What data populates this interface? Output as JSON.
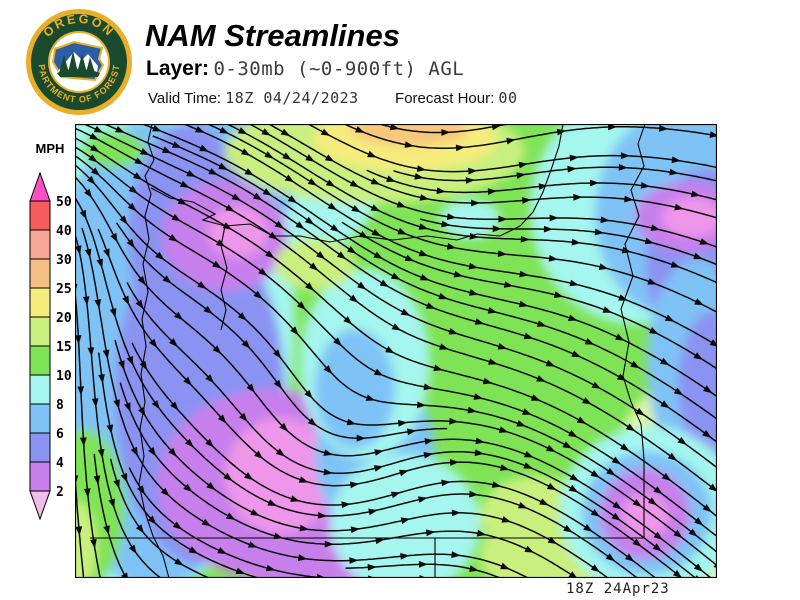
{
  "header": {
    "title": "NAM Streamlines",
    "layer_label": "Layer:",
    "layer_value": "0-30mb (~0-900ft) AGL",
    "valid_time_label": "Valid Time:",
    "valid_time_value": "18Z 04/24/2023",
    "forecast_hour_label": "Forecast Hour:",
    "forecast_hour_value": "00"
  },
  "logo": {
    "ring_text_top": "OREGON",
    "ring_text_bottom": "DEPARTMENT OF FORESTRY",
    "colors": {
      "gold": "#E9AF28",
      "dark_green": "#1A4A2E",
      "sky_blue": "#2B5EA7",
      "white": "#FFFFFF"
    }
  },
  "legend": {
    "unit": "MPH",
    "boundary_labels": [
      "50",
      "40",
      "30",
      "25",
      "20",
      "15",
      "10",
      "8",
      "6",
      "4",
      "2"
    ],
    "band_colors": [
      "#F75C5C",
      "#F8A795",
      "#F4C083",
      "#F6EC7C",
      "#C9F07F",
      "#7FE356",
      "#A4F6EE",
      "#7FC3F6",
      "#8B93F2",
      "#C77FEC"
    ],
    "arrow_top_color": "#FF4FC6",
    "arrow_bottom_color": "#F1BCE9"
  },
  "map": {
    "timestamp": "18Z 24Apr23",
    "palette": {
      "green": "#7FE356",
      "yellowgreen": "#C9F07F",
      "paleyellowgreen": "#DFF6A6",
      "yellow": "#F6EC7C",
      "orange": "#F7C77B",
      "cyan": "#A4F6EE",
      "lightblue": "#7FC3F6",
      "periwinkle": "#8B93F2",
      "violet": "#C77FEC",
      "pink": "#EE96E9",
      "stream": "#0a0a0a",
      "boundary": "#000000"
    }
  }
}
